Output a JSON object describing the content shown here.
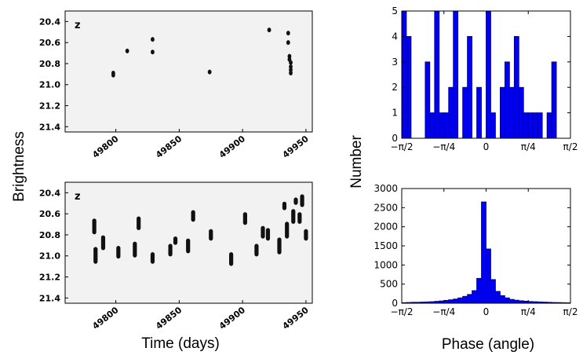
{
  "labels": {
    "left_xlabel": "Time (days)",
    "left_ylabel": "Brightness",
    "right_xlabel": "Phase (angle)",
    "right_ylabel": "Number"
  },
  "colors": {
    "bar_fill": "#0000ee",
    "bar_edge": "#000066",
    "points": "#111111",
    "frame_bg": "#f2f2f2"
  },
  "chart_data": [
    {
      "type": "scatter",
      "panel_label": "z",
      "xlim": [
        49760,
        49955
      ],
      "ylim": [
        21.45,
        20.3
      ],
      "xticks": [
        49800,
        49850,
        49900,
        49950
      ],
      "yticks": [
        "20.4",
        "20.6",
        "20.8",
        "21.0",
        "21.2",
        "21.4"
      ],
      "points": [
        [
          49798,
          20.89
        ],
        [
          49798,
          20.91
        ],
        [
          49809,
          20.68
        ],
        [
          49829,
          20.57
        ],
        [
          49829,
          20.69
        ],
        [
          49874,
          20.88
        ],
        [
          49921,
          20.48
        ],
        [
          49936,
          20.51
        ],
        [
          49936,
          20.6
        ],
        [
          49937,
          20.73
        ],
        [
          49937,
          20.76
        ],
        [
          49938,
          20.79
        ],
        [
          49938,
          20.83
        ],
        [
          49938,
          20.86
        ],
        [
          49938,
          20.89
        ]
      ]
    },
    {
      "type": "scatter",
      "panel_label": "z",
      "xlim": [
        49760,
        49955
      ],
      "ylim": [
        21.45,
        20.3
      ],
      "xticks": [
        49800,
        49850,
        49900,
        49950
      ],
      "yticks": [
        "20.4",
        "20.6",
        "20.8",
        "21.0",
        "21.2",
        "21.4"
      ],
      "clusters": [
        [
          49783,
          20.66,
          20.78
        ],
        [
          49784,
          20.93,
          21.06
        ],
        [
          49790,
          20.82,
          20.93
        ],
        [
          49802,
          20.92,
          21.01
        ],
        [
          49815,
          20.88,
          21.0
        ],
        [
          49818,
          20.64,
          20.74
        ],
        [
          49829,
          20.98,
          21.06
        ],
        [
          49843,
          20.9,
          20.99
        ],
        [
          49847,
          20.83,
          20.88
        ],
        [
          49857,
          20.85,
          20.96
        ],
        [
          49861,
          20.58,
          20.66
        ],
        [
          49875,
          20.76,
          20.84
        ],
        [
          49891,
          20.98,
          21.08
        ],
        [
          49902,
          20.6,
          20.69
        ],
        [
          49911,
          20.9,
          20.99
        ],
        [
          49916,
          20.73,
          20.82
        ],
        [
          49920,
          20.75,
          20.84
        ],
        [
          49929,
          20.84,
          20.97
        ],
        [
          49933,
          20.5,
          20.55
        ],
        [
          49935,
          20.69,
          20.82
        ],
        [
          49940,
          20.57,
          20.68
        ],
        [
          49942,
          20.46,
          20.5
        ],
        [
          49945,
          20.6,
          20.68
        ],
        [
          49947,
          20.43,
          20.52
        ],
        [
          49950,
          20.76,
          20.84
        ]
      ]
    },
    {
      "type": "bar",
      "xlim": [
        -1.5708,
        1.5708
      ],
      "ylim": [
        0,
        5
      ],
      "xticks": [
        "−π/2",
        "−π/4",
        "0",
        "π/4",
        "π/2"
      ],
      "yticks": [
        "0",
        "1",
        "2",
        "3",
        "4",
        "5"
      ],
      "bins": 36,
      "values": [
        5,
        4,
        0,
        0,
        0,
        3,
        1,
        5,
        1,
        1,
        2,
        5,
        0,
        2,
        4,
        0,
        2,
        0,
        5,
        1,
        0,
        2,
        3,
        2,
        4,
        2,
        1,
        1,
        1,
        1,
        0,
        1,
        3,
        0,
        0,
        0
      ]
    },
    {
      "type": "bar",
      "xlim": [
        -1.5708,
        1.5708
      ],
      "ylim": [
        0,
        3000
      ],
      "xticks": [
        "−π/2",
        "−π/4",
        "0",
        "π/4",
        "π/2"
      ],
      "yticks": [
        "0",
        "500",
        "1000",
        "1500",
        "2000",
        "2500",
        "3000"
      ],
      "bins": 36,
      "values": [
        15,
        20,
        25,
        25,
        30,
        35,
        40,
        50,
        60,
        75,
        90,
        110,
        140,
        180,
        230,
        330,
        650,
        2650,
        1420,
        620,
        310,
        200,
        140,
        100,
        80,
        65,
        55,
        45,
        40,
        35,
        30,
        25,
        20,
        18,
        15,
        12
      ]
    }
  ]
}
